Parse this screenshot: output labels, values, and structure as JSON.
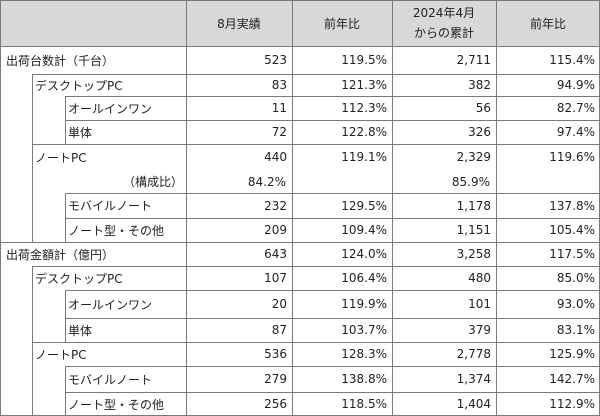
{
  "header": {
    "col1": "8月実績",
    "col2": "前年比",
    "col3_line1": "2024年4月",
    "col3_line2": "からの累計",
    "col4": "前年比"
  },
  "rows": [
    {
      "label": "出荷台数計（千台）",
      "monthly": "523",
      "yoy": "119.5%",
      "cumulative": "2,711",
      "cum_yoy": "115.4%"
    },
    {
      "label": "デスクトップPC",
      "monthly": "83",
      "yoy": "121.3%",
      "cumulative": "382",
      "cum_yoy": "94.9%"
    },
    {
      "label": "オールインワン",
      "monthly": "11",
      "yoy": "112.3%",
      "cumulative": "56",
      "cum_yoy": "82.7%"
    },
    {
      "label": "単体",
      "monthly": "72",
      "yoy": "122.8%",
      "cumulative": "326",
      "cum_yoy": "97.4%"
    },
    {
      "label": "ノートPC",
      "monthly": "440",
      "yoy": "119.1%",
      "cumulative": "2,329",
      "cum_yoy": "119.6%"
    },
    {
      "label": "（構成比）",
      "monthly": "84.2%",
      "yoy": "",
      "cumulative": "85.9%",
      "cum_yoy": ""
    },
    {
      "label": "モバイルノート",
      "monthly": "232",
      "yoy": "129.5%",
      "cumulative": "1,178",
      "cum_yoy": "137.8%"
    },
    {
      "label": "ノート型・その他",
      "monthly": "209",
      "yoy": "109.4%",
      "cumulative": "1,151",
      "cum_yoy": "105.4%"
    },
    {
      "label": "出荷金額計（億円）",
      "monthly": "643",
      "yoy": "124.0%",
      "cumulative": "3,258",
      "cum_yoy": "117.5%"
    },
    {
      "label": "デスクトップPC",
      "monthly": "107",
      "yoy": "106.4%",
      "cumulative": "480",
      "cum_yoy": "85.0%"
    },
    {
      "label": "オールインワン",
      "monthly": "20",
      "yoy": "119.9%",
      "cumulative": "101",
      "cum_yoy": "93.0%"
    },
    {
      "label": "単体",
      "monthly": "87",
      "yoy": "103.7%",
      "cumulative": "379",
      "cum_yoy": "83.1%"
    },
    {
      "label": "ノートPC",
      "monthly": "536",
      "yoy": "128.3%",
      "cumulative": "2,778",
      "cum_yoy": "125.9%"
    },
    {
      "label": "モバイルノート",
      "monthly": "279",
      "yoy": "138.8%",
      "cumulative": "1,374",
      "cum_yoy": "142.7%"
    },
    {
      "label": "ノート型・その他",
      "monthly": "256",
      "yoy": "118.5%",
      "cumulative": "1,404",
      "cum_yoy": "112.9%"
    }
  ],
  "colors": {
    "header_bg": "#d8d8d8",
    "border": "#7a7a7a"
  }
}
